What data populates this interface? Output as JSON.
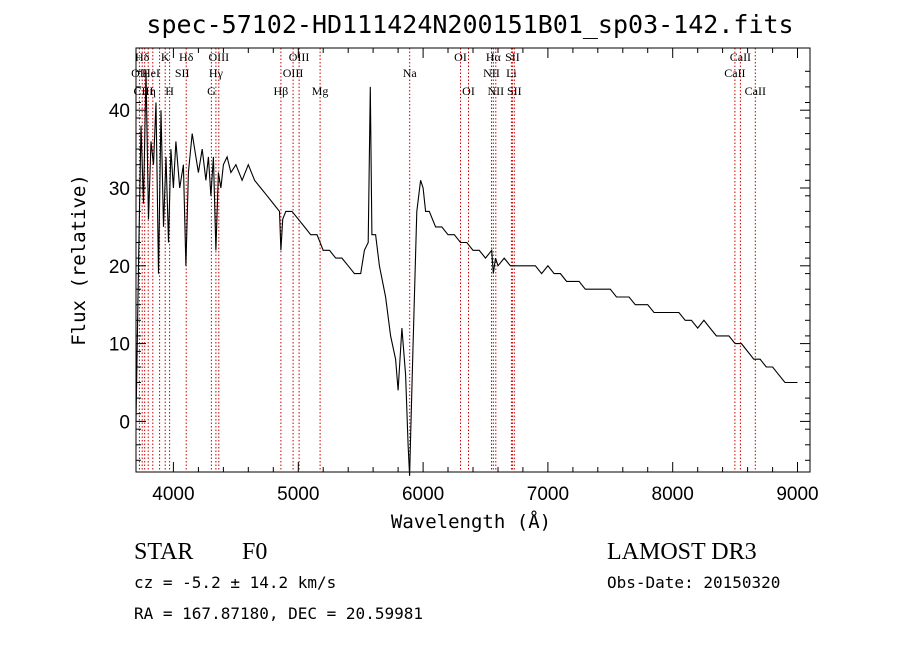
{
  "chart_data": {
    "type": "line",
    "title": "spec-57102-HD111424N200151B01_sp03-142.fits",
    "xlabel": "Wavelength (Å)",
    "ylabel": "Flux (relative)",
    "xlim": [
      3700,
      9100
    ],
    "ylim": [
      -6.5,
      48
    ],
    "xticks": [
      4000,
      5000,
      6000,
      7000,
      8000,
      9000
    ],
    "yticks": [
      0,
      10,
      20,
      30,
      40
    ],
    "grid": false,
    "series": [
      {
        "name": "spectrum",
        "x": [
          3700,
          3720,
          3740,
          3760,
          3780,
          3800,
          3820,
          3840,
          3860,
          3880,
          3900,
          3920,
          3940,
          3960,
          3980,
          4000,
          4020,
          4050,
          4080,
          4100,
          4120,
          4150,
          4180,
          4200,
          4230,
          4260,
          4280,
          4300,
          4320,
          4340,
          4360,
          4380,
          4400,
          4430,
          4460,
          4500,
          4550,
          4600,
          4650,
          4700,
          4750,
          4800,
          4850,
          4861,
          4875,
          4900,
          4950,
          5000,
          5050,
          5100,
          5150,
          5200,
          5250,
          5300,
          5350,
          5400,
          5450,
          5500,
          5530,
          5560,
          5577,
          5590,
          5620,
          5650,
          5700,
          5740,
          5780,
          5800,
          5830,
          5860,
          5880,
          5892,
          5900,
          5920,
          5950,
          5980,
          6000,
          6020,
          6050,
          6100,
          6150,
          6200,
          6250,
          6300,
          6350,
          6400,
          6450,
          6500,
          6550,
          6563,
          6580,
          6600,
          6650,
          6700,
          6750,
          6800,
          6850,
          6900,
          6950,
          7000,
          7050,
          7100,
          7150,
          7200,
          7250,
          7300,
          7350,
          7400,
          7450,
          7500,
          7550,
          7600,
          7650,
          7700,
          7750,
          7800,
          7850,
          7900,
          7950,
          8000,
          8050,
          8100,
          8150,
          8200,
          8250,
          8300,
          8350,
          8400,
          8450,
          8500,
          8550,
          8600,
          8650,
          8700,
          8750,
          8800,
          8850,
          8900,
          8950,
          9000
        ],
        "y": [
          0,
          20,
          38,
          28,
          45,
          26,
          36,
          33,
          41,
          19,
          40,
          25,
          34,
          23,
          35,
          30,
          36,
          30,
          33,
          20,
          32,
          37,
          34,
          32,
          35,
          31,
          34,
          29,
          34,
          22,
          32,
          30,
          33,
          34,
          32,
          33,
          31,
          33,
          31,
          30,
          29,
          28,
          27,
          22,
          26,
          27,
          27,
          26,
          25,
          24,
          24,
          22,
          22,
          21,
          21,
          20,
          19,
          19,
          22,
          23,
          43,
          24,
          24,
          20,
          16,
          11,
          8,
          4,
          12,
          6,
          -3,
          -7,
          -2,
          10,
          27,
          31,
          30,
          27,
          27,
          25,
          25,
          24,
          24,
          23,
          23,
          22,
          22,
          21,
          22,
          19,
          21,
          20,
          21,
          20,
          20,
          20,
          20,
          20,
          19,
          20,
          19,
          19,
          18,
          18,
          18,
          17,
          17,
          17,
          17,
          17,
          16,
          16,
          16,
          15,
          15,
          15,
          14,
          14,
          14,
          14,
          14,
          13,
          13,
          12,
          13,
          12,
          11,
          11,
          11,
          10,
          10,
          9,
          8,
          8,
          7,
          7,
          6,
          5,
          5,
          5
        ]
      }
    ],
    "annotations": [
      {
        "label": "Hδ",
        "x": 3750,
        "row": 1
      },
      {
        "label": "K",
        "x": 3934,
        "row": 1
      },
      {
        "label": "Hδ",
        "x": 4102,
        "row": 1
      },
      {
        "label": "OIII",
        "x": 4363,
        "row": 1
      },
      {
        "label": "OIII",
        "x": 5007,
        "row": 1
      },
      {
        "label": "OI",
        "x": 6300,
        "row": 1
      },
      {
        "label": "Hα",
        "x": 6563,
        "row": 1
      },
      {
        "label": "SII",
        "x": 6716,
        "row": 1
      },
      {
        "label": "CaII",
        "x": 8542,
        "row": 1
      },
      {
        "label": "OII",
        "x": 3727,
        "row": 2
      },
      {
        "label": "HeI",
        "x": 3820,
        "row": 2
      },
      {
        "label": "SII",
        "x": 4070,
        "row": 2
      },
      {
        "label": "Hγ",
        "x": 4340,
        "row": 2
      },
      {
        "label": "OIII",
        "x": 4959,
        "row": 2
      },
      {
        "label": "Na",
        "x": 5893,
        "row": 2
      },
      {
        "label": "NII",
        "x": 6548,
        "row": 2
      },
      {
        "label": "Li",
        "x": 6708,
        "row": 2
      },
      {
        "label": "CaII",
        "x": 8498,
        "row": 2
      },
      {
        "label": "CIII",
        "x": 3760,
        "row": 3
      },
      {
        "label": "η",
        "x": 3835,
        "row": 3
      },
      {
        "label": "H",
        "x": 3969,
        "row": 3
      },
      {
        "label": "G",
        "x": 4304,
        "row": 3
      },
      {
        "label": "Hβ",
        "x": 4861,
        "row": 3
      },
      {
        "label": "Mg",
        "x": 5175,
        "row": 3
      },
      {
        "label": "OI",
        "x": 6364,
        "row": 3
      },
      {
        "label": "NII",
        "x": 6583,
        "row": 3
      },
      {
        "label": "SII",
        "x": 6731,
        "row": 3
      },
      {
        "label": "CaII",
        "x": 8662,
        "row": 3
      }
    ],
    "annotation_lines_x": [
      3727,
      3750,
      3770,
      3798,
      3835,
      3889,
      3934,
      3969,
      4102,
      4304,
      4340,
      4363,
      4861,
      4959,
      5007,
      5175,
      5893,
      6300,
      6364,
      6548,
      6563,
      6583,
      6708,
      6716,
      6731,
      8498,
      8542,
      8662
    ],
    "annotation_line_color": "#cc0000"
  },
  "info": {
    "object_class": "STAR",
    "subclass": "F0",
    "survey": "LAMOST DR3",
    "redshift": "cz = -5.2 ± 14.2 km/s",
    "obs_date": "Obs-Date: 20150320",
    "coords": "RA = 167.87180, DEC =  20.59981"
  }
}
